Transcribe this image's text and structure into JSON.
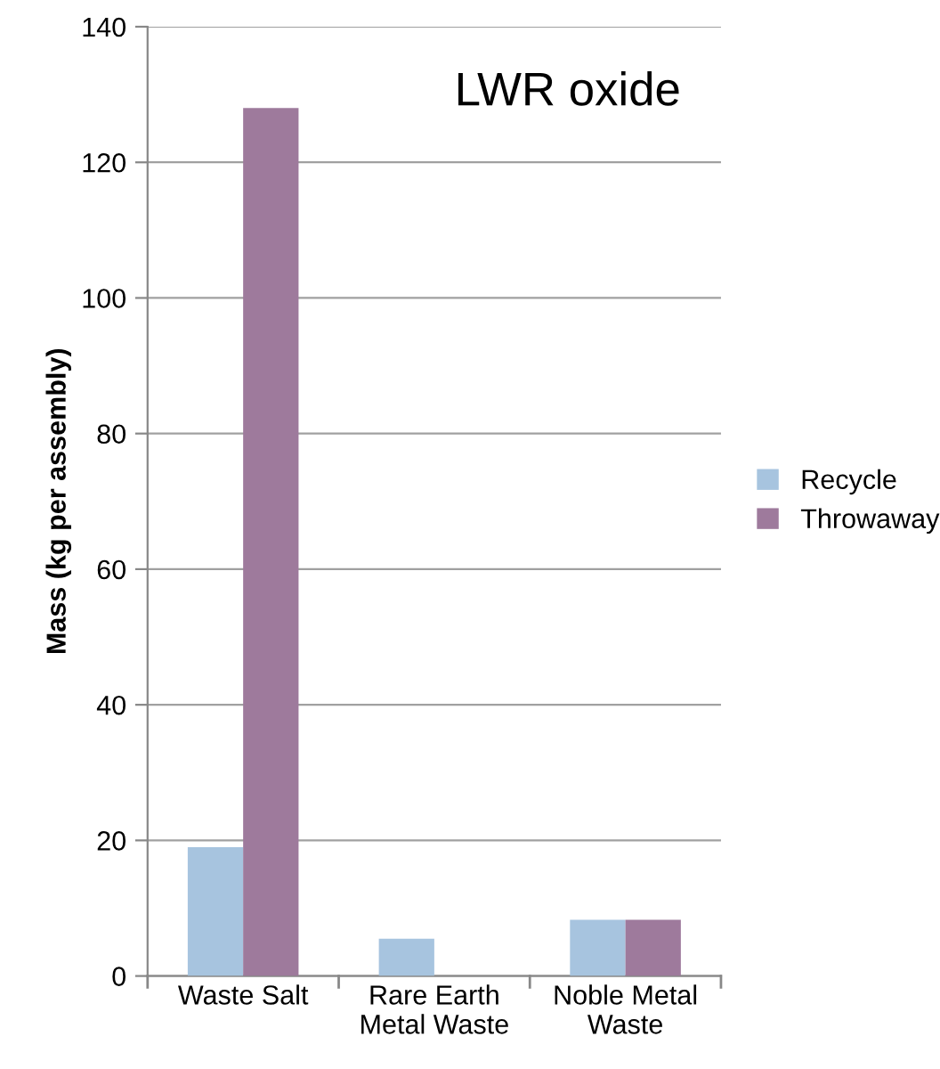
{
  "chart_data": {
    "type": "bar",
    "ylabel": "Mass (kg per assembly)",
    "annotations": [
      "LWR oxide"
    ],
    "categories": [
      "Waste Salt",
      "Rare Earth\nMetal Waste",
      "Noble Metal\nWaste"
    ],
    "series": [
      {
        "name": "Recycle",
        "color": "#a7c4df",
        "values": [
          19,
          5.5,
          8.3
        ]
      },
      {
        "name": "Throwaway",
        "color": "#9e7a9c",
        "values": [
          128,
          null,
          8.3
        ]
      }
    ],
    "ylim": [
      0,
      140
    ],
    "yticks": [
      0,
      20,
      40,
      60,
      80,
      100,
      120,
      140
    ],
    "grid": "y",
    "legend": "right"
  }
}
